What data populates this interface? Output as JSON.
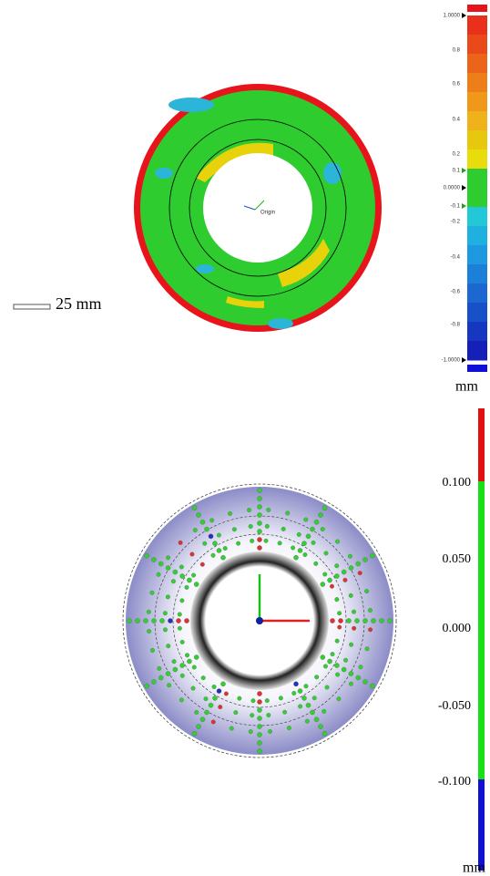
{
  "top_panel": {
    "origin_label": "Origin",
    "scale_bar_label": "25 mm",
    "colorbar_labels": [
      "1.0000",
      "0.8",
      "0.6",
      "0.4",
      "0.2",
      "0.1",
      "0.0000",
      "-0.1",
      "-0.2",
      "-0.4",
      "-0.6",
      "-0.8",
      "-1.0000"
    ],
    "unit": "mm"
  },
  "bottom_panel": {
    "colorbar_labels": [
      "0.100",
      "0.050",
      "0.000",
      "-0.050",
      "-0.100"
    ],
    "unit": "mm"
  }
}
